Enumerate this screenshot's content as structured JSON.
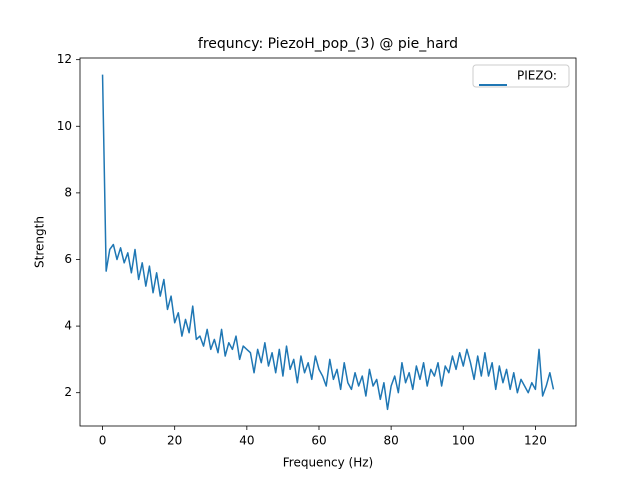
{
  "chart_data": {
    "type": "line",
    "title": "frequncy: PiezoH_pop_(3) @ pie_hard",
    "x_label": "Frequency (Hz)",
    "y_label": "Strength",
    "x": [
      0,
      1,
      2,
      3,
      4,
      5,
      6,
      7,
      8,
      9,
      10,
      11,
      12,
      13,
      14,
      15,
      16,
      17,
      18,
      19,
      20,
      21,
      22,
      23,
      24,
      25,
      26,
      27,
      28,
      29,
      30,
      31,
      32,
      33,
      34,
      35,
      36,
      37,
      38,
      39,
      40,
      41,
      42,
      43,
      44,
      45,
      46,
      47,
      48,
      49,
      50,
      51,
      52,
      53,
      54,
      55,
      56,
      57,
      58,
      59,
      60,
      61,
      62,
      63,
      64,
      65,
      66,
      67,
      68,
      69,
      70,
      71,
      72,
      73,
      74,
      75,
      76,
      77,
      78,
      79,
      80,
      81,
      82,
      83,
      84,
      85,
      86,
      87,
      88,
      89,
      90,
      91,
      92,
      93,
      94,
      95,
      96,
      97,
      98,
      99,
      100,
      101,
      102,
      103,
      104,
      105,
      106,
      107,
      108,
      109,
      110,
      111,
      112,
      113,
      114,
      115,
      116,
      117,
      118,
      119,
      120,
      121,
      122,
      123,
      124,
      125
    ],
    "series": [
      {
        "name": "PIEZO:",
        "color": "#1f77b4",
        "values": [
          11.55,
          5.65,
          6.3,
          6.45,
          6.0,
          6.35,
          5.9,
          6.2,
          5.6,
          6.3,
          5.4,
          5.9,
          5.2,
          5.8,
          5.0,
          5.6,
          4.9,
          5.4,
          4.5,
          4.9,
          4.1,
          4.4,
          3.7,
          4.2,
          3.8,
          4.6,
          3.6,
          3.7,
          3.4,
          3.9,
          3.3,
          3.6,
          3.2,
          3.9,
          3.1,
          3.5,
          3.3,
          3.7,
          3.0,
          3.4,
          3.3,
          3.2,
          2.6,
          3.3,
          2.9,
          3.5,
          2.8,
          3.2,
          2.6,
          3.3,
          2.5,
          3.4,
          2.7,
          3.0,
          2.3,
          3.1,
          2.6,
          2.9,
          2.4,
          3.1,
          2.7,
          2.5,
          2.2,
          3.0,
          2.4,
          2.7,
          2.1,
          2.9,
          2.3,
          2.1,
          2.6,
          2.2,
          2.5,
          1.9,
          2.7,
          2.2,
          2.4,
          1.8,
          2.3,
          1.5,
          2.2,
          2.5,
          2.0,
          2.9,
          2.3,
          2.6,
          2.1,
          2.8,
          2.4,
          2.9,
          2.2,
          2.7,
          2.5,
          2.9,
          2.2,
          2.8,
          2.6,
          3.1,
          2.7,
          3.2,
          2.8,
          3.3,
          2.9,
          2.4,
          3.1,
          2.5,
          3.2,
          2.5,
          2.9,
          2.1,
          2.8,
          2.3,
          2.7,
          2.1,
          2.6,
          2.0,
          2.4,
          2.2,
          2.0,
          2.3,
          2.1,
          3.3,
          1.9,
          2.2,
          2.6,
          2.1
        ]
      }
    ],
    "xlim": [
      -6.25,
      131.25
    ],
    "ylim": [
      1.0,
      12.05
    ],
    "xticks": [
      0,
      20,
      40,
      60,
      80,
      100,
      120
    ],
    "yticks": [
      2,
      4,
      6,
      8,
      10,
      12
    ],
    "legend": "upper right",
    "grid": false
  }
}
